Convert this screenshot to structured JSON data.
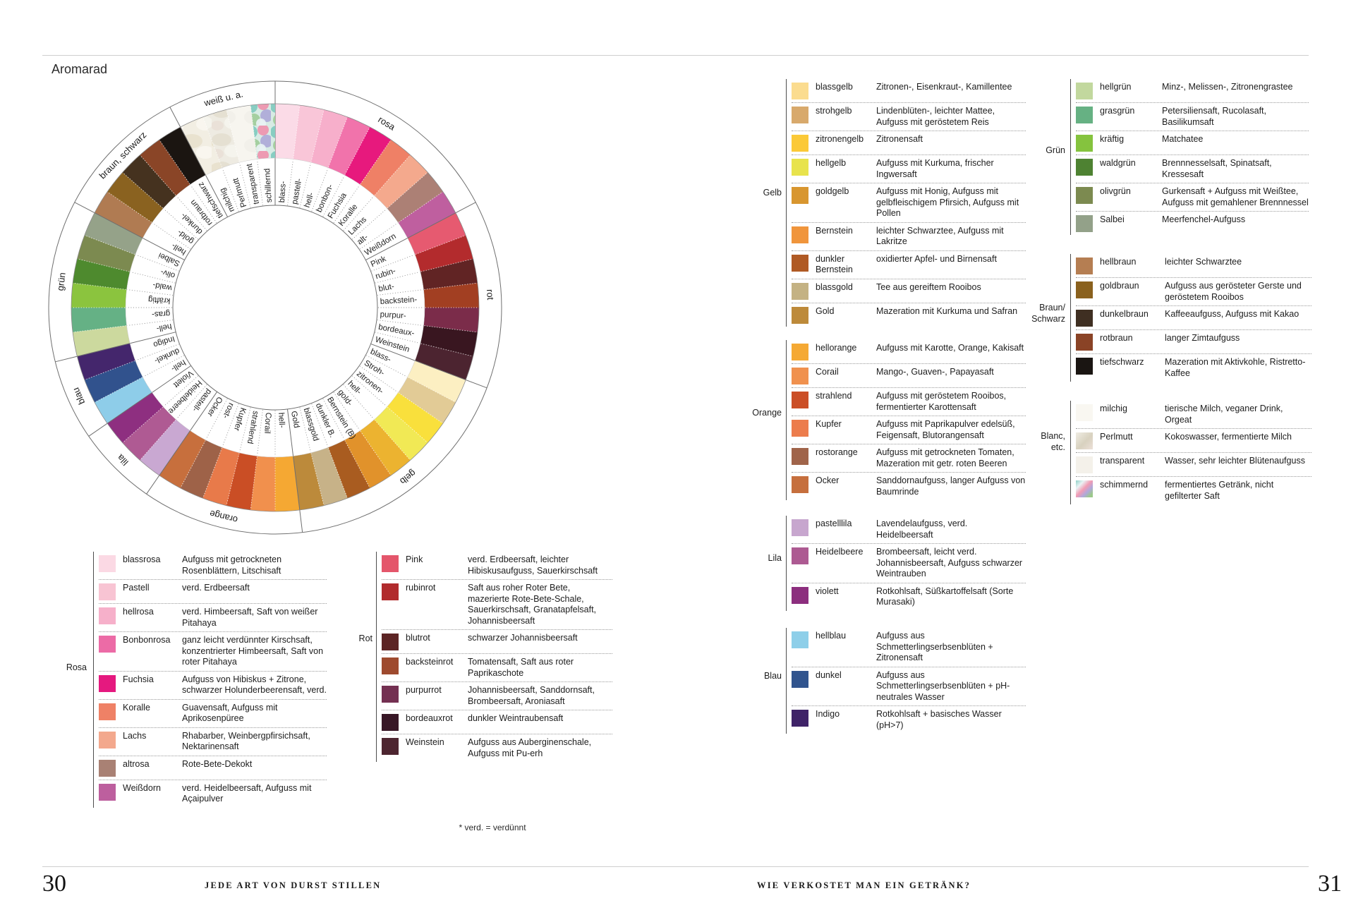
{
  "title": "Aromarad",
  "footnote": "* verd. = verdünnt",
  "footer": {
    "left_page_number": "30",
    "left_section": "JEDE ART VON DURST STILLEN",
    "right_section": "WIE VERKOSTET MAN EIN GETRÄNK?",
    "right_page_number": "31"
  },
  "wheel": {
    "categories": [
      {
        "name": "rosa",
        "segments": [
          {
            "label": "blass-",
            "color": "#fbdbe7"
          },
          {
            "label": "pastell-",
            "color": "#f9c6d8"
          },
          {
            "label": "hell-",
            "color": "#f7afcb"
          },
          {
            "label": "bonbon-",
            "color": "#f173ab"
          },
          {
            "label": "Fuchsia",
            "color": "#e7197d"
          },
          {
            "label": "Koralle",
            "color": "#ef8066"
          },
          {
            "label": "Lachs",
            "color": "#f4a98d"
          },
          {
            "label": "alt-",
            "color": "#ac8075"
          },
          {
            "label": "Weißdorn",
            "color": "#bf5f9f"
          }
        ]
      },
      {
        "name": "rot",
        "segments": [
          {
            "label": "Pink",
            "color": "#e65a70"
          },
          {
            "label": "rubin-",
            "color": "#b32b2d"
          },
          {
            "label": "blut-",
            "color": "#612424"
          },
          {
            "label": "backstein-",
            "color": "#a23f22"
          },
          {
            "label": "purpur-",
            "color": "#7b2c4a"
          },
          {
            "label": "bordeaux-",
            "color": "#391620"
          },
          {
            "label": "Weinstein",
            "color": "#4c2430"
          }
        ]
      },
      {
        "name": "gelb",
        "segments": [
          {
            "label": "blass-",
            "color": "#fcefc2"
          },
          {
            "label": "Stroh-",
            "color": "#e2cb96"
          },
          {
            "label": "zitronen-",
            "color": "#f9e03c"
          },
          {
            "label": "hell-",
            "color": "#f1e955"
          },
          {
            "label": "gold-",
            "color": "#ecb330"
          },
          {
            "label": "Bernstein (B)",
            "color": "#e1922b"
          },
          {
            "label": "dunkler B.",
            "color": "#a95c20"
          },
          {
            "label": "blassgold",
            "color": "#c7b288"
          },
          {
            "label": "Gold",
            "color": "#bc8a3b"
          }
        ]
      },
      {
        "name": "orange",
        "segments": [
          {
            "label": "hell-",
            "color": "#f5a833"
          },
          {
            "label": "Corail",
            "color": "#f1904d"
          },
          {
            "label": "strahlend",
            "color": "#ca4e25"
          },
          {
            "label": "Kupfer",
            "color": "#e87a4a"
          },
          {
            "label": "rost-",
            "color": "#9e6248"
          },
          {
            "label": "Ocker",
            "color": "#c76f3d"
          }
        ]
      },
      {
        "name": "lila",
        "segments": [
          {
            "label": "pastell-",
            "color": "#c9a8d2"
          },
          {
            "label": "Heidelbeere",
            "color": "#af5a93"
          },
          {
            "label": "Violett",
            "color": "#8e2f80"
          }
        ]
      },
      {
        "name": "blau",
        "segments": [
          {
            "label": "hell-",
            "color": "#8ecde9"
          },
          {
            "label": "dunkel-",
            "color": "#31528d"
          },
          {
            "label": "Indigo",
            "color": "#44266c"
          }
        ]
      },
      {
        "name": "grün",
        "segments": [
          {
            "label": "hell-",
            "color": "#ccd99e"
          },
          {
            "label": "gras-",
            "color": "#65b185"
          },
          {
            "label": "kräftig",
            "color": "#8bc43e"
          },
          {
            "label": "wald-",
            "color": "#4e8a2e"
          },
          {
            "label": "oliv-",
            "color": "#7c8a50"
          },
          {
            "label": "Salbei",
            "color": "#95a289"
          }
        ]
      },
      {
        "name": "braun, schwarz",
        "segments": [
          {
            "label": "hell-",
            "color": "#b07b52"
          },
          {
            "label": "gold-",
            "color": "#8a6220"
          },
          {
            "label": "dunkel-",
            "color": "#45321f"
          },
          {
            "label": "rotbraun",
            "color": "#8a4527"
          },
          {
            "label": "tiefschwarz",
            "color": "#1b1511"
          }
        ]
      },
      {
        "name": "weiß u. a.",
        "segments": [
          {
            "label": "milchig",
            "color": "texture:pat-milchig"
          },
          {
            "label": "Perlmutt",
            "color": "texture:pat-perlmutt"
          },
          {
            "label": "transparent",
            "color": "texture:pat-transparent"
          },
          {
            "label": "schillernd",
            "color": "texture:pat-schillernd"
          }
        ]
      }
    ]
  },
  "legend_tables": [
    {
      "key": "rosa",
      "group": "Rosa",
      "rows": [
        {
          "label": "blassrosa",
          "color": "#fbd9e4",
          "desc": "Aufguss mit getrockneten Rosenblättern, Litschisaft"
        },
        {
          "label": "Pastell",
          "color": "#f8c4d3",
          "desc": "verd. Erdbeersaft"
        },
        {
          "label": "hellrosa",
          "color": "#f6b0ca",
          "desc": "verd. Himbeersaft, Saft von weißer Pitahaya"
        },
        {
          "label": "Bonbonrosa",
          "color": "#ec6ba6",
          "desc": "ganz leicht verdünnter Kirschsaft, konzentrierter Himbeersaft, Saft von roter Pitahaya"
        },
        {
          "label": "Fuchsia",
          "color": "#e5197f",
          "desc": "Aufguss von Hibiskus + Zitrone, schwarzer Holunderbeerensaft, verd."
        },
        {
          "label": "Koralle",
          "color": "#ef8166",
          "desc": "Guavensaft, Aufguss mit Aprikosenpüree"
        },
        {
          "label": "Lachs",
          "color": "#f3a88d",
          "desc": "Rhabarber, Weinbergpfirsichsaft, Nektarinensaft"
        },
        {
          "label": "altrosa",
          "color": "#a98174",
          "desc": "Rote-Bete-Dekokt"
        },
        {
          "label": "Weißdorn",
          "color": "#bd5f9e",
          "desc": "verd. Heidelbeersaft, Aufguss mit Açaipulver"
        }
      ]
    },
    {
      "key": "rot",
      "group": "Rot",
      "rows": [
        {
          "label": "Pink",
          "color": "#e4566b",
          "desc": "verd. Erdbeersaft, leichter Hibiskusaufguss, Sauerkirschsaft"
        },
        {
          "label": "rubinrot",
          "color": "#b12b2d",
          "desc": "Saft aus roher Roter Bete, mazerierte Rote-Bete-Schale, Sauerkirschsaft, Granatapfelsaft, Johannisbeersaft"
        },
        {
          "label": "blutrot",
          "color": "#5c2424",
          "desc": "schwarzer Johannisbeersaft"
        },
        {
          "label": "backsteinrot",
          "color": "#9e4a2e",
          "desc": "Tomatensaft, Saft aus roter Paprikaschote"
        },
        {
          "label": "purpurrot",
          "color": "#743052",
          "desc": "Johannisbeersaft, Sanddornsaft, Brombeersaft, Aroniasaft"
        },
        {
          "label": "bordeauxrot",
          "color": "#381726",
          "desc": "dunkler Weintraubensaft"
        },
        {
          "label": "Weinstein",
          "color": "#4d2530",
          "desc": "Aufguss aus Auberginenschale, Aufguss mit Pu-erh"
        }
      ]
    },
    {
      "key": "gelb",
      "group": "Gelb",
      "rows": [
        {
          "label": "blassgelb",
          "color": "#fbdc8f",
          "desc": "Zitronen-, Eisenkraut-, Kamillentee"
        },
        {
          "label": "strohgelb",
          "color": "#d8a96c",
          "desc": "Lindenblüten-, leichter Mattee, Aufguss mit geröstetem Reis"
        },
        {
          "label": "zitronengelb",
          "color": "#fbc937",
          "desc": "Zitronensaft"
        },
        {
          "label": "hellgelb",
          "color": "#e8e34c",
          "desc": "Aufguss mit Kurkuma, frischer Ingwersaft"
        },
        {
          "label": "goldgelb",
          "color": "#d8962f",
          "desc": "Aufguss mit Honig, Aufguss mit gelbfleischigem Pfirsich, Aufguss mit Pollen"
        },
        {
          "label": "Bernstein",
          "color": "#f0953c",
          "desc": "leichter Schwarztee, Aufguss mit Lakritze"
        },
        {
          "label": "dunkler Bernstein",
          "color": "#b05a24",
          "desc": "oxidierter Apfel- und Birnensaft"
        },
        {
          "label": "blassgold",
          "color": "#c4b283",
          "desc": "Tee aus gereiftem Rooibos"
        },
        {
          "label": "Gold",
          "color": "#bd8a3a",
          "desc": "Mazeration mit Kurkuma und Safran"
        }
      ]
    },
    {
      "key": "orange",
      "group": "Orange",
      "rows": [
        {
          "label": "hellorange",
          "color": "#f5a934",
          "desc": "Aufguss mit Karotte, Orange, Kakisaft"
        },
        {
          "label": "Corail",
          "color": "#f0914e",
          "desc": "Mango-, Guaven-, Papayasaft"
        },
        {
          "label": "strahlend",
          "color": "#cb4e26",
          "desc": "Aufguss mit geröstetem Rooibos, fermentierter Karottensaft"
        },
        {
          "label": "Kupfer",
          "color": "#ec7c4c",
          "desc": "Aufguss mit Paprikapulver edelsüß, Feigensaft, Blutorangensaft"
        },
        {
          "label": "rostorange",
          "color": "#a0644a",
          "desc": "Aufguss mit getrockneten Tomaten, Mazeration mit getr. roten Beeren"
        },
        {
          "label": "Ocker",
          "color": "#c66f3d",
          "desc": "Sanddornaufguss, langer Aufguss von Baumrinde"
        }
      ]
    },
    {
      "key": "lila",
      "group": "Lila",
      "rows": [
        {
          "label": "pastelllila",
          "color": "#c7a6ce",
          "desc": "Lavendelaufguss, verd. Heidelbeersaft"
        },
        {
          "label": "Heidelbeere",
          "color": "#ad5a92",
          "desc": "Brombeersaft, leicht verd. Johannisbeersaft, Aufguss schwarzer Weintrauben"
        },
        {
          "label": "violett",
          "color": "#8c2e7e",
          "desc": "Rotkohlsaft, Süßkartoffelsaft (Sorte Murasaki)"
        }
      ]
    },
    {
      "key": "blau",
      "group": "Blau",
      "rows": [
        {
          "label": "hellblau",
          "color": "#8ecfe9",
          "desc": "Aufguss aus Schmetterlingserbsenblüten + Zitronensaft"
        },
        {
          "label": "dunkel",
          "color": "#31548e",
          "desc": "Aufguss aus Schmetterlingserbsenblüten + pH-neutrales Wasser"
        },
        {
          "label": "Indigo",
          "color": "#3f2368",
          "desc": "Rotkohlsaft + basisches Wasser (pH>7)"
        }
      ]
    },
    {
      "key": "gruen",
      "group": "Grün",
      "rows": [
        {
          "label": "hellgrün",
          "color": "#c2d89e",
          "desc": "Minz-, Melissen-, Zitronengrastee"
        },
        {
          "label": "grasgrün",
          "color": "#66b183",
          "desc": "Petersiliensaft, Rucolasaft, Basilikumsaft"
        },
        {
          "label": "kräftig",
          "color": "#85c33e",
          "desc": "Matchatee"
        },
        {
          "label": "waldgrün",
          "color": "#4e8232",
          "desc": "Brennnesselsaft, Spinatsaft, Kressesaft"
        },
        {
          "label": "olivgrün",
          "color": "#7c8a50",
          "desc": "Gurkensaft + Aufguss mit Weißtee, Aufguss mit gemahlener Brennnessel"
        },
        {
          "label": "Salbei",
          "color": "#93a189",
          "desc": "Meerfenchel-Aufguss"
        }
      ]
    },
    {
      "key": "braun",
      "group": "Braun/\nSchwarz",
      "rows": [
        {
          "label": "hellbraun",
          "color": "#b57e52",
          "desc": "leichter Schwarztee"
        },
        {
          "label": "goldbraun",
          "color": "#8a611e",
          "desc": "Aufguss aus gerösteter Gerste und geröstetem Rooibos"
        },
        {
          "label": "dunkelbraun",
          "color": "#3f2f22",
          "desc": "Kaffeeaufguss, Aufguss mit Kakao"
        },
        {
          "label": "rotbraun",
          "color": "#8a4326",
          "desc": "langer Zimtaufguss"
        },
        {
          "label": "tiefschwarz",
          "color": "#1a1512",
          "desc": "Mazeration mit Aktivkohle, Ristretto-Kaffee"
        }
      ]
    },
    {
      "key": "blanc",
      "group": "Blanc,\netc.",
      "rows": [
        {
          "label": "milchig",
          "color": "#f9f7f1",
          "desc": "tierische Milch, veganer Drink, Orgeat"
        },
        {
          "label": "Perlmutt",
          "color": "linear-gradient(135deg,#efece3,#d8d1bf 55%,#ece0d8)",
          "desc": "Kokoswasser, fermentierte Milch"
        },
        {
          "label": "transparent",
          "color": "#f4f1ea",
          "desc": "Wasser, sehr leichter Blütenaufguss"
        },
        {
          "label": "schimmernd",
          "color": "linear-gradient(135deg,#8fd0c6,#eaf3f5 25%,#f29cb4 48%,#b0a8dc 68%,#9cc98a 88%)",
          "desc": "fermentiertes Getränk, nicht gefilterter Saft"
        }
      ]
    }
  ]
}
